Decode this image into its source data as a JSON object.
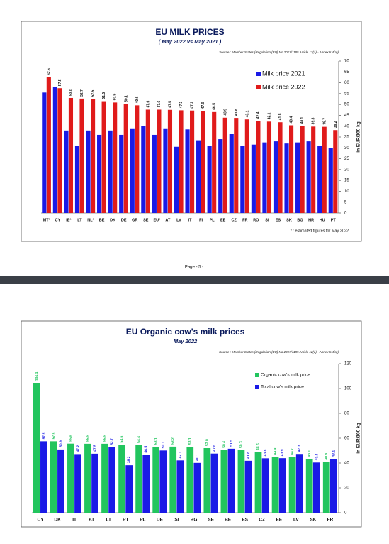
{
  "page_label": "Page - 5 -",
  "chart_data": [
    {
      "type": "bar",
      "title": "EU MILK PRICES",
      "subtitle": "( May 2022  vs  May 2021 )",
      "source": "Source : Member States (Regulation (EU) No 2017/1185 Article 12(a) - Annex II.4(a))",
      "y_label": "in EUR/100 kg",
      "note": "* : estimated figures for May 2022",
      "categories": [
        "MT*",
        "CY",
        "IE*",
        "LT",
        "NL*",
        "BE",
        "DK",
        "DE",
        "GR",
        "SE",
        "EU*",
        "AT",
        "LV",
        "IT",
        "FI",
        "PL",
        "EE",
        "CZ",
        "FR",
        "RO",
        "SI",
        "ES",
        "SK",
        "BG",
        "HR",
        "HU",
        "PT"
      ],
      "series": [
        {
          "name": "Milk price 2021",
          "color": "#1a1ae6",
          "values": [
            55.5,
            58,
            38,
            31,
            38,
            36,
            38,
            36,
            39,
            40,
            36,
            39,
            30.5,
            38.5,
            33.5,
            31,
            34,
            36.5,
            31,
            31.5,
            32.5,
            33,
            32,
            32.5,
            33,
            31,
            30
          ]
        },
        {
          "name": "Milk price 2022",
          "color": "#e01b1b",
          "values": [
            62.5,
            57.5,
            53,
            52.7,
            52.5,
            51.5,
            50.9,
            50.1,
            49.6,
            47.6,
            47.6,
            47.5,
            47.3,
            47.2,
            47,
            46.5,
            43.9,
            43.8,
            43.1,
            42.4,
            42.1,
            41.8,
            40.4,
            40.1,
            39.8,
            39.7,
            38.2
          ],
          "value_labels": [
            "62.5",
            "57.5",
            "53.0",
            "52.7",
            "52.5",
            "51.5",
            "50.9",
            "50.1",
            "49.6",
            "47.6",
            "47.6",
            "47.5",
            "47.3",
            "47.2",
            "47.0",
            "46.5",
            "43.9",
            "43.8",
            "43.1",
            "42.4",
            "42.1",
            "41.8",
            "40.4",
            "40.1",
            "39.8",
            "39.7",
            "38.2"
          ]
        }
      ],
      "ylim": [
        0,
        70
      ],
      "yticks": [
        0,
        5,
        10,
        15,
        20,
        25,
        30,
        35,
        40,
        45,
        50,
        55,
        60,
        65,
        70
      ],
      "grid": false
    },
    {
      "type": "bar",
      "title": "EU Organic cow's milk  prices",
      "subtitle": "May 2022",
      "source": "Source : Member States (Regulation (EU) No 2017/1185 Article 12(a) - Annex II.4(a))",
      "y_label": "in EUR/100 kg",
      "categories": [
        "CY",
        "DK",
        "IT",
        "AT",
        "LT",
        "PT",
        "PL",
        "DE",
        "SI",
        "BG",
        "SE",
        "BE",
        "ES",
        "CZ",
        "EE",
        "LV",
        "SK",
        "FR"
      ],
      "series": [
        {
          "name": "Organic cow's milk price",
          "color": "#22c55e",
          "values": [
            104.4,
            57.5,
            55.6,
            55.5,
            55.5,
            54.6,
            54.4,
            53.1,
            53.2,
            53.1,
            52,
            50.4,
            50.3,
            48.6,
            44.9,
            44.7,
            43.1,
            40.8
          ],
          "value_labels": [
            "104.4",
            "57.5",
            "55.6",
            "55.5",
            "55.5",
            "54.6",
            "54.4",
            "53.1",
            "53.2",
            "53.1",
            "52.0",
            "50.4",
            "50.3",
            "48.6",
            "44.9",
            "44.7",
            "43.1",
            "40.8"
          ]
        },
        {
          "name": "Total cow's milk price",
          "color": "#1a1ae6",
          "values": [
            57.5,
            50.9,
            47.2,
            47.5,
            52.7,
            38.2,
            46.5,
            50.1,
            42.1,
            40.1,
            47.6,
            51.5,
            41.8,
            43.8,
            43.9,
            47.3,
            40.4,
            43.1
          ],
          "value_labels": [
            "57.5",
            "50.9",
            "47.2",
            "47.5",
            "52.7",
            "38.2",
            "46.5",
            "50.1",
            "42.1",
            "40.1",
            "47.6",
            "51.5",
            "41.8",
            "43.8",
            "43.9",
            "47.3",
            "40.4",
            "43.1"
          ]
        }
      ],
      "ylim": [
        0,
        120
      ],
      "yticks": [
        0,
        20,
        40,
        60,
        80,
        100,
        120
      ],
      "grid": false
    }
  ]
}
